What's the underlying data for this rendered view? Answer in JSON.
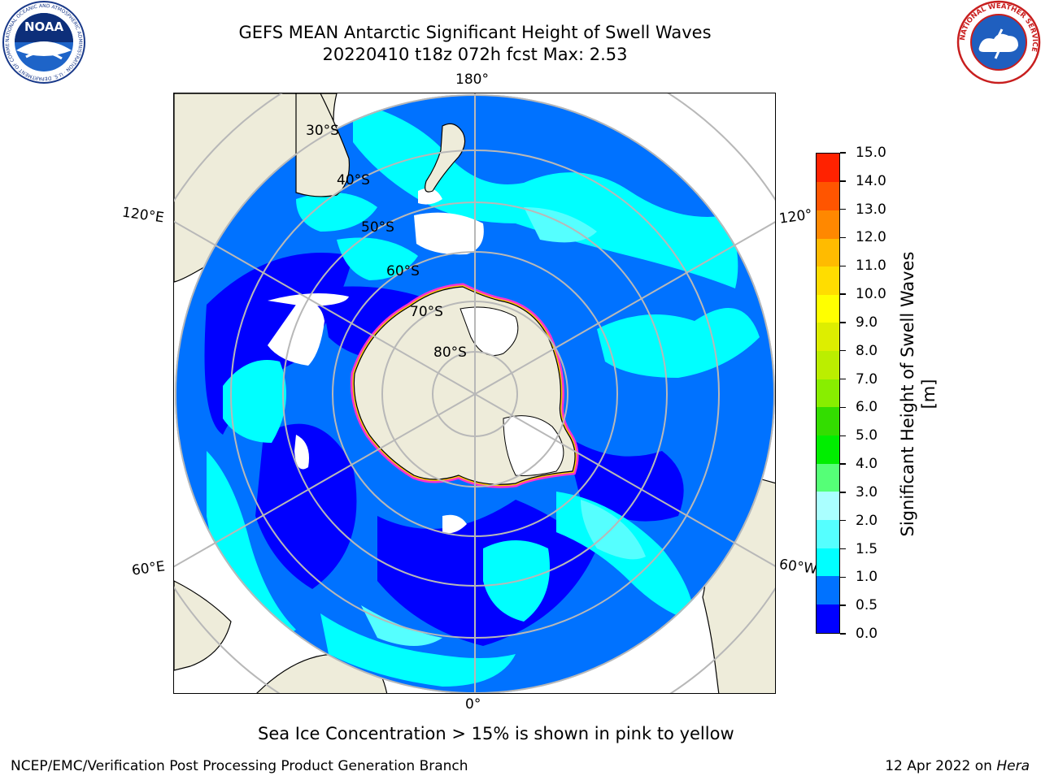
{
  "title": {
    "line1": "GEFS MEAN Antarctic Significant Height of Swell Waves",
    "line2": "20220410 t18z 072h fcst   Max: 2.53"
  },
  "logos": {
    "left": {
      "text": "NOAA",
      "ring_text": "NATIONAL OCEANIC AND ATMOSPHERIC ADMINISTRATION · U.S. DEPARTMENT OF COMMERCE",
      "icon": "noaa-logo"
    },
    "right": {
      "ring_text": "NATIONAL WEATHER SERVICE",
      "icon": "nws-logo"
    }
  },
  "map": {
    "projection": "south-polar-stereographic",
    "longitude_labels": {
      "top": "180°",
      "upper_left": "120°E",
      "upper_right": "120°",
      "lower_left": "60°E",
      "lower_right": "60°W",
      "bottom": "0°"
    },
    "latitude_labels": [
      "30°S",
      "40°S",
      "50°S",
      "60°S",
      "70°S",
      "80°S"
    ],
    "colors": {
      "land": "#eeecda",
      "grid": "#b8b8b8",
      "ice_edge": [
        "#ff33cc",
        "#ffcc00"
      ]
    }
  },
  "colorbar": {
    "title": "Significant Height of Swell Waves [m]",
    "ticks": [
      "0.0",
      "0.5",
      "1.0",
      "1.5",
      "2.0",
      "3.0",
      "4.0",
      "5.0",
      "6.0",
      "7.0",
      "8.0",
      "9.0",
      "10.0",
      "11.0",
      "12.0",
      "13.0",
      "14.0",
      "15.0"
    ],
    "colors": [
      "#0000ff",
      "#0072ff",
      "#00ffff",
      "#55ffff",
      "#aaffff",
      "#55ff77",
      "#00ee00",
      "#33dd00",
      "#88ee00",
      "#bbee00",
      "#ddee00",
      "#ffff00",
      "#ffdd00",
      "#ffbb00",
      "#ff8800",
      "#ff5500",
      "#ff2200"
    ]
  },
  "footnote": "Sea Ice Concentration > 15% is shown in pink to yellow",
  "credit": {
    "left": "NCEP/EMC/Verification Post Processing Product Generation Branch",
    "right_prefix": "12 Apr 2022 on ",
    "right_host": "Hera"
  }
}
